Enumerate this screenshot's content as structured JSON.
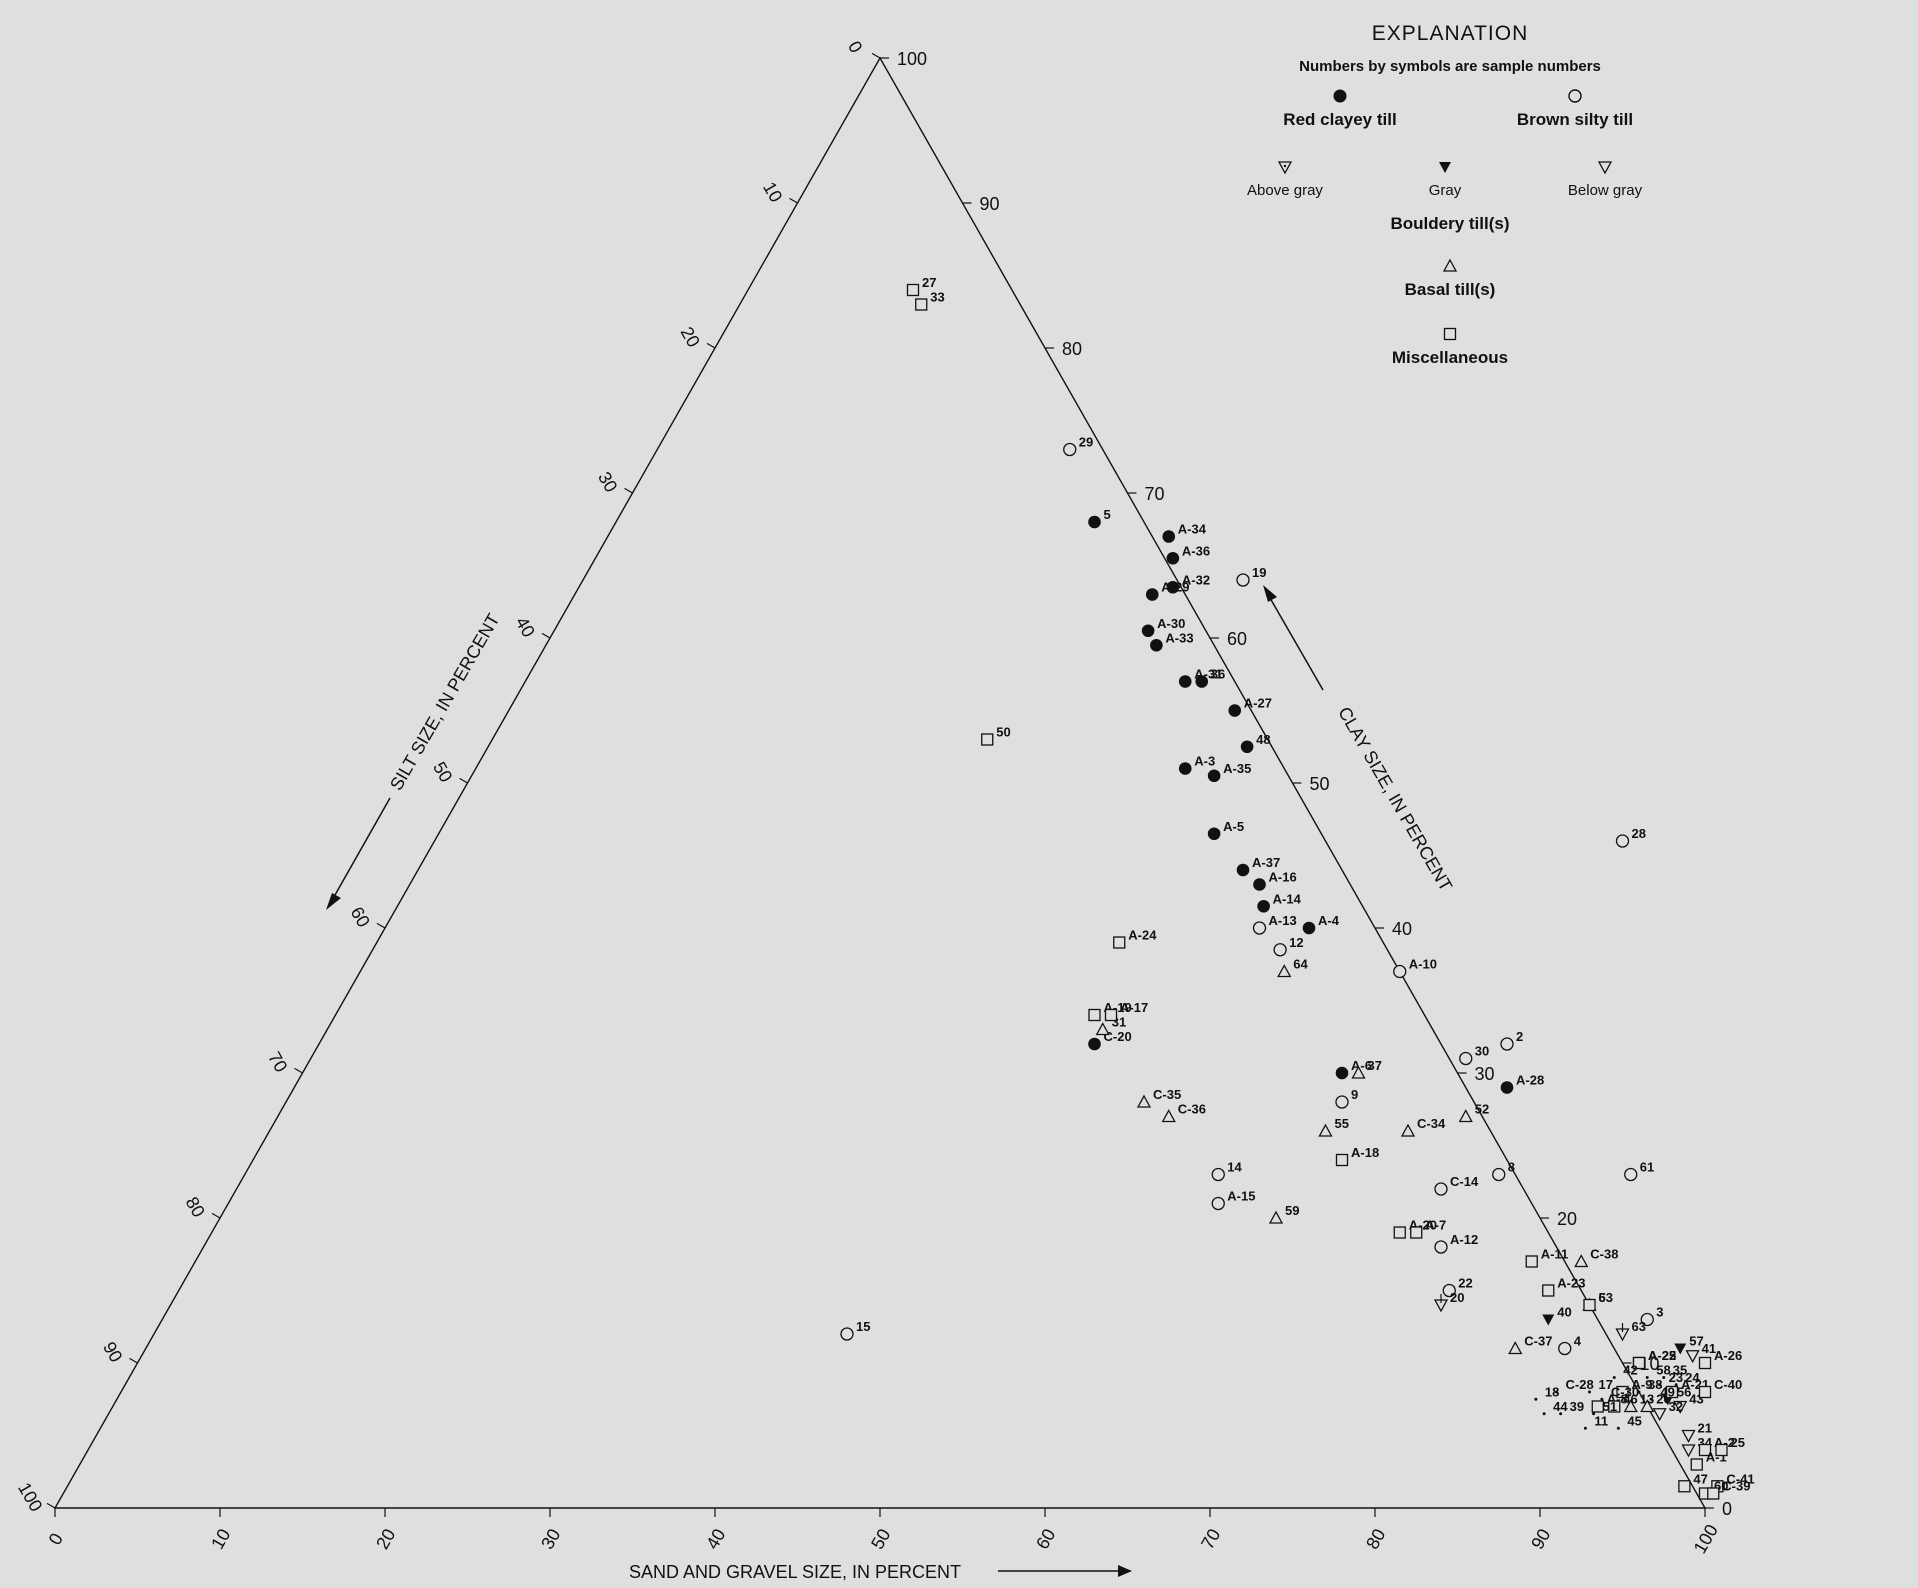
{
  "chart_data": {
    "type": "ternary-scatter",
    "axes": {
      "sand": {
        "label": "SAND AND GRAVEL SIZE, IN PERCENT"
      },
      "silt": {
        "label": "SILT SIZE, IN PERCENT"
      },
      "clay": {
        "label": "CLAY SIZE, IN PERCENT"
      },
      "ticks": [
        "0",
        "10",
        "20",
        "30",
        "40",
        "50",
        "60",
        "70",
        "80",
        "90",
        "100"
      ]
    },
    "legend": {
      "title": "EXPLANATION",
      "note": "Numbers by symbols are sample numbers",
      "red_clayey": "Red clayey till",
      "brown_silty": "Brown silty till",
      "above_gray": "Above gray",
      "gray": "Gray",
      "below_gray": "Below gray",
      "bouldery": "Bouldery till(s)",
      "basal": "Basal till(s)",
      "misc": "Miscellaneous"
    },
    "series": [
      {
        "name": "Red clayey till",
        "symbol": "filled-circle",
        "points": [
          {
            "label": "5",
            "sand": 29,
            "clay": 68
          },
          {
            "label": "A-34",
            "sand": 34,
            "clay": 67
          },
          {
            "label": "A-36",
            "sand": 35,
            "clay": 65.5
          },
          {
            "label": "A-29",
            "sand": 35,
            "clay": 63
          },
          {
            "label": "A-32",
            "sand": 36,
            "clay": 63.5
          },
          {
            "label": "A-30",
            "sand": 36,
            "clay": 60.5
          },
          {
            "label": "A-33",
            "sand": 37,
            "clay": 59.5
          },
          {
            "label": "36",
            "sand": 41,
            "clay": 57
          },
          {
            "label": "A-31",
            "sand": 40,
            "clay": 57
          },
          {
            "label": "A-27",
            "sand": 44,
            "clay": 55
          },
          {
            "label": "48",
            "sand": 46,
            "clay": 52.5
          },
          {
            "label": "A-3",
            "sand": 43,
            "clay": 51
          },
          {
            "label": "A-35",
            "sand": 45,
            "clay": 50.5
          },
          {
            "label": "A-5",
            "sand": 47,
            "clay": 46.5
          },
          {
            "label": "A-37",
            "sand": 50,
            "clay": 44
          },
          {
            "label": "A-16",
            "sand": 51.5,
            "clay": 43
          },
          {
            "label": "A-14",
            "sand": 52.5,
            "clay": 41.5
          },
          {
            "label": "A-4",
            "sand": 56,
            "clay": 40
          },
          {
            "label": "C-20",
            "sand": 47,
            "clay": 32
          },
          {
            "label": "A-6",
            "sand": 63,
            "clay": 30
          },
          {
            "label": "A-28",
            "sand": 73.5,
            "clay": 29
          }
        ]
      },
      {
        "name": "Brown silty till",
        "symbol": "open-circle",
        "points": [
          {
            "label": "29",
            "sand": 25,
            "clay": 73
          },
          {
            "label": "19",
            "sand": 40,
            "clay": 64
          },
          {
            "label": "28",
            "sand": 72,
            "clay": 46
          },
          {
            "label": "A-13",
            "sand": 53,
            "clay": 40
          },
          {
            "label": "12",
            "sand": 55,
            "clay": 38.5
          },
          {
            "label": "A-10",
            "sand": 63,
            "clay": 37
          },
          {
            "label": "2",
            "sand": 72,
            "clay": 32
          },
          {
            "label": "30",
            "sand": 70,
            "clay": 31
          },
          {
            "label": "9",
            "sand": 64,
            "clay": 28
          },
          {
            "label": "14",
            "sand": 59,
            "clay": 23
          },
          {
            "label": "A-15",
            "sand": 60,
            "clay": 21
          },
          {
            "label": "8",
            "sand": 76,
            "clay": 23
          },
          {
            "label": "C-14",
            "sand": 73,
            "clay": 22
          },
          {
            "label": "61",
            "sand": 84,
            "clay": 23
          },
          {
            "label": "A-12",
            "sand": 75,
            "clay": 18
          },
          {
            "label": "22",
            "sand": 77,
            "clay": 15
          },
          {
            "label": "3",
            "sand": 90,
            "clay": 13
          },
          {
            "label": "4",
            "sand": 86,
            "clay": 11
          },
          {
            "label": "15",
            "sand": 42,
            "clay": 12
          }
        ]
      },
      {
        "name": "Bouldery till(s) Above gray",
        "symbol": "open-down-triangle-dot",
        "points": [
          {
            "label": "63",
            "sand": 89,
            "clay": 12
          },
          {
            "label": "20",
            "sand": 77,
            "clay": 14
          }
        ]
      },
      {
        "name": "Bouldery till(s) Gray",
        "symbol": "filled-down-triangle",
        "points": [
          {
            "label": "40",
            "sand": 84,
            "clay": 13
          },
          {
            "label": "57",
            "sand": 93,
            "clay": 11
          },
          {
            "label": "56",
            "sand": 94,
            "clay": 7.5
          }
        ]
      },
      {
        "name": "Bouldery till(s) Below gray",
        "symbol": "open-down-triangle",
        "points": [
          {
            "label": "41",
            "sand": 94,
            "clay": 10.5
          },
          {
            "label": "43",
            "sand": 95,
            "clay": 7
          },
          {
            "label": "32",
            "sand": 94,
            "clay": 6.5
          },
          {
            "label": "21",
            "sand": 96.5,
            "clay": 5
          },
          {
            "label": "34",
            "sand": 97,
            "clay": 4
          }
        ]
      },
      {
        "name": "Basal till(s)",
        "symbol": "open-triangle",
        "points": [
          {
            "label": "64",
            "sand": 56,
            "clay": 37
          },
          {
            "label": "31",
            "sand": 47,
            "clay": 33
          },
          {
            "label": "37",
            "sand": 64,
            "clay": 30
          },
          {
            "label": "C-35",
            "sand": 52,
            "clay": 28
          },
          {
            "label": "C-36",
            "sand": 54,
            "clay": 27
          },
          {
            "label": "52",
            "sand": 72,
            "clay": 27
          },
          {
            "label": "55",
            "sand": 64,
            "clay": 26
          },
          {
            "label": "C-34",
            "sand": 69,
            "clay": 26
          },
          {
            "label": "59",
            "sand": 64,
            "clay": 20
          },
          {
            "label": "C-38",
            "sand": 84,
            "clay": 17
          },
          {
            "label": "6",
            "sand": 86,
            "clay": 14
          },
          {
            "label": "C-37",
            "sand": 83,
            "clay": 11
          },
          {
            "label": "13",
            "sand": 92,
            "clay": 7
          },
          {
            "label": "26",
            "sand": 93,
            "clay": 7
          }
        ]
      },
      {
        "name": "Miscellaneous",
        "symbol": "open-square",
        "points": [
          {
            "label": "27",
            "sand": 10,
            "clay": 84
          },
          {
            "label": "33",
            "sand": 11,
            "clay": 83
          },
          {
            "label": "50",
            "sand": 30,
            "clay": 53
          },
          {
            "label": "A-24",
            "sand": 45,
            "clay": 39
          },
          {
            "label": "A-19",
            "sand": 46,
            "clay": 34
          },
          {
            "label": "A-17",
            "sand": 47,
            "clay": 34
          },
          {
            "label": "A-18",
            "sand": 66,
            "clay": 24
          },
          {
            "label": "A-20",
            "sand": 72,
            "clay": 19
          },
          {
            "label": "A-7",
            "sand": 73,
            "clay": 19
          },
          {
            "label": "A-11",
            "sand": 81,
            "clay": 17
          },
          {
            "label": "A-23",
            "sand": 83,
            "clay": 15
          },
          {
            "label": "A-22",
            "sand": 91,
            "clay": 10
          },
          {
            "label": "A-21",
            "sand": 94,
            "clay": 8
          },
          {
            "label": "A-9",
            "sand": 91,
            "clay": 8
          },
          {
            "label": "A-8",
            "sand": 90,
            "clay": 7
          },
          {
            "label": "A-25",
            "sand": 91,
            "clay": 10
          },
          {
            "label": "A-26",
            "sand": 95,
            "clay": 10
          },
          {
            "label": "53",
            "sand": 86,
            "clay": 14
          },
          {
            "label": "46",
            "sand": 91,
            "clay": 7
          },
          {
            "label": "C-40",
            "sand": 96,
            "clay": 8
          },
          {
            "label": "A-2",
            "sand": 98,
            "clay": 4
          },
          {
            "label": "A-1",
            "sand": 98,
            "clay": 3
          },
          {
            "label": "25",
            "sand": 99,
            "clay": 4
          },
          {
            "label": "47",
            "sand": 98,
            "clay": 1.5
          },
          {
            "label": "C-41",
            "sand": 100,
            "clay": 1.5
          },
          {
            "label": "60",
            "sand": 99.5,
            "clay": 1
          },
          {
            "label": "C-39",
            "sand": 100,
            "clay": 1
          }
        ]
      },
      {
        "name": "Unclassified cluster labels",
        "symbol": "mixed",
        "points": [
          {
            "label": "42",
            "sand": 90,
            "clay": 9
          },
          {
            "label": "58",
            "sand": 92,
            "clay": 9
          },
          {
            "label": "35",
            "sand": 93,
            "clay": 9
          },
          {
            "label": "23",
            "sand": 93,
            "clay": 8.5
          },
          {
            "label": "24",
            "sand": 94,
            "clay": 8.5
          },
          {
            "label": "C-28",
            "sand": 87,
            "clay": 8
          },
          {
            "label": "17",
            "sand": 89,
            "clay": 8
          },
          {
            "label": "38",
            "sand": 92,
            "clay": 8
          },
          {
            "label": "49",
            "sand": 93,
            "clay": 7.5
          },
          {
            "label": "18",
            "sand": 86,
            "clay": 7.5
          },
          {
            "label": "C-30",
            "sand": 90,
            "clay": 7.5
          },
          {
            "label": "44",
            "sand": 87,
            "clay": 6.5
          },
          {
            "label": "39",
            "sand": 88,
            "clay": 6.5
          },
          {
            "label": "51",
            "sand": 90,
            "clay": 6.5
          },
          {
            "label": "11",
            "sand": 90,
            "clay": 5.5
          },
          {
            "label": "45",
            "sand": 92,
            "clay": 5.5
          }
        ]
      }
    ]
  }
}
